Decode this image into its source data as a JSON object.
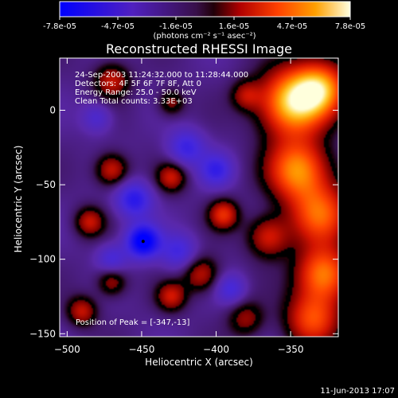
{
  "chart_data": {
    "type": "heatmap",
    "title": "Reconstructed RHESSI Image",
    "xlabel": "Heliocentric X (arcsec)",
    "ylabel": "Heliocentric Y (arcsec)",
    "xlim": [
      -505,
      -318
    ],
    "ylim": [
      -152,
      35
    ],
    "x_ticks": [
      -500,
      -450,
      -400,
      -350
    ],
    "y_ticks": [
      0,
      -50,
      -100,
      -150
    ],
    "colorbar": {
      "min": -7.8e-05,
      "max": 7.8e-05,
      "tick_labels": [
        "-7.8e-05",
        "-4.7e-05",
        "-1.6e-05",
        "1.6e-05",
        "4.7e-05",
        "7.8e-05"
      ],
      "units": "(photons cm⁻² s⁻¹ asec⁻²)"
    },
    "annotations": [
      "24-Sep-2003 11:24:32.000 to 11:28:44.000",
      "Detectors: 4F 5F 6F 7F 8F, Att 0",
      "Energy Range: 25.0 - 50.0 keV",
      "Clean     Total counts: 3.33E+03"
    ],
    "peak_text": "Position of Peak = [-347,-13]",
    "peak_position": [
      -347,
      -13
    ],
    "min_marker": [
      -449,
      -88
    ],
    "footer_date": "11-Jun-2013 17:07",
    "blobs": [
      {
        "x": -349,
        "y": 5,
        "r": 22,
        "v": 1.0
      },
      {
        "x": -330,
        "y": 15,
        "r": 18,
        "v": 0.8
      },
      {
        "x": -345,
        "y": -40,
        "r": 20,
        "v": 0.85
      },
      {
        "x": -330,
        "y": -70,
        "r": 20,
        "v": 0.7
      },
      {
        "x": -328,
        "y": -110,
        "r": 18,
        "v": 0.8
      },
      {
        "x": -335,
        "y": -140,
        "r": 18,
        "v": 0.65
      },
      {
        "x": -365,
        "y": -85,
        "r": 14,
        "v": 0.5
      },
      {
        "x": -395,
        "y": -70,
        "r": 10,
        "v": 0.55
      },
      {
        "x": -410,
        "y": -110,
        "r": 12,
        "v": 0.45
      },
      {
        "x": -430,
        "y": -125,
        "r": 10,
        "v": 0.45
      },
      {
        "x": -470,
        "y": -115,
        "r": 10,
        "v": 0.4
      },
      {
        "x": -490,
        "y": -135,
        "r": 10,
        "v": 0.45
      },
      {
        "x": -485,
        "y": -75,
        "r": 10,
        "v": 0.45
      },
      {
        "x": -470,
        "y": -40,
        "r": 11,
        "v": 0.5
      },
      {
        "x": -430,
        "y": -45,
        "r": 10,
        "v": 0.45
      },
      {
        "x": -470,
        "y": 20,
        "r": 12,
        "v": 0.45
      },
      {
        "x": -430,
        "y": 5,
        "r": 9,
        "v": 0.35
      },
      {
        "x": -380,
        "y": 10,
        "r": 10,
        "v": 0.35
      },
      {
        "x": -380,
        "y": -140,
        "r": 12,
        "v": 0.35
      },
      {
        "x": -455,
        "y": -60,
        "r": 12,
        "v": -0.55
      },
      {
        "x": -449,
        "y": -88,
        "r": 11,
        "v": -0.9
      },
      {
        "x": -420,
        "y": -25,
        "r": 12,
        "v": -0.45
      },
      {
        "x": -400,
        "y": -40,
        "r": 11,
        "v": -0.45
      },
      {
        "x": -425,
        "y": -95,
        "r": 12,
        "v": -0.4
      },
      {
        "x": -470,
        "y": -100,
        "r": 10,
        "v": -0.35
      },
      {
        "x": -390,
        "y": -120,
        "r": 10,
        "v": -0.35
      },
      {
        "x": -480,
        "y": -5,
        "r": 10,
        "v": -0.3
      }
    ]
  }
}
